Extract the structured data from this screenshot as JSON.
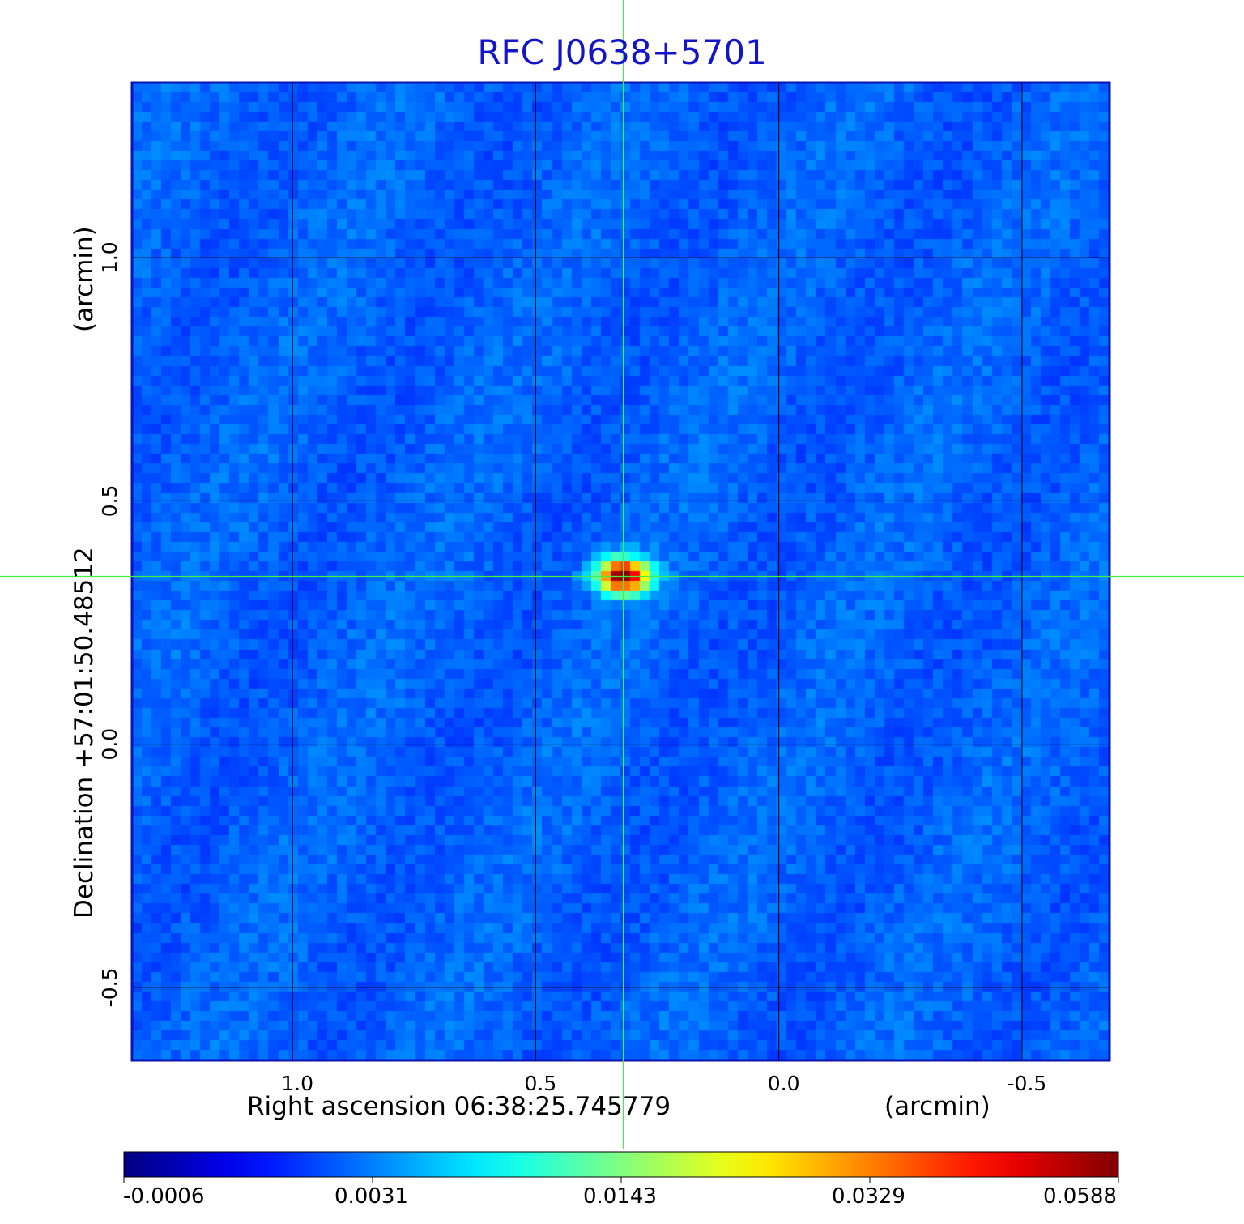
{
  "chart_data": {
    "type": "heatmap",
    "title": "RFC J0638+5701",
    "xlabel": "Right ascension  06:38:25.745779",
    "xlabel_unit": "(arcmin)",
    "ylabel": "Declination  +57:01:50.48512",
    "ylabel_unit": "(arcmin)",
    "x_ticks": [
      1.0,
      0.5,
      0.0,
      -0.5
    ],
    "x_tick_labels": [
      "1.0",
      "0.5",
      "0.0",
      "-0.5"
    ],
    "y_ticks": [
      1.0,
      0.5,
      0.0,
      -0.5
    ],
    "y_tick_labels": [
      "1.0",
      "0.5",
      "0.0",
      "-0.5"
    ],
    "xlim": [
      1.33,
      -0.68
    ],
    "ylim": [
      -0.65,
      1.36
    ],
    "grid": true,
    "crosshair": {
      "x": 0.32,
      "y": 0.345
    },
    "source_peak": {
      "x": 0.32,
      "y": 0.345,
      "value": 0.0588
    },
    "colormap": "jet",
    "colorbar_ticks": [
      "-0.0006",
      "0.0031",
      "0.0143",
      "0.0329",
      "0.0588"
    ],
    "colorbar_placement": "bottom"
  },
  "colors": {
    "title": "#1414c8",
    "frame": "#0a14b4",
    "grid": "#000000",
    "crosshair": "#44ee44",
    "background_map": "#1f4cf0"
  }
}
